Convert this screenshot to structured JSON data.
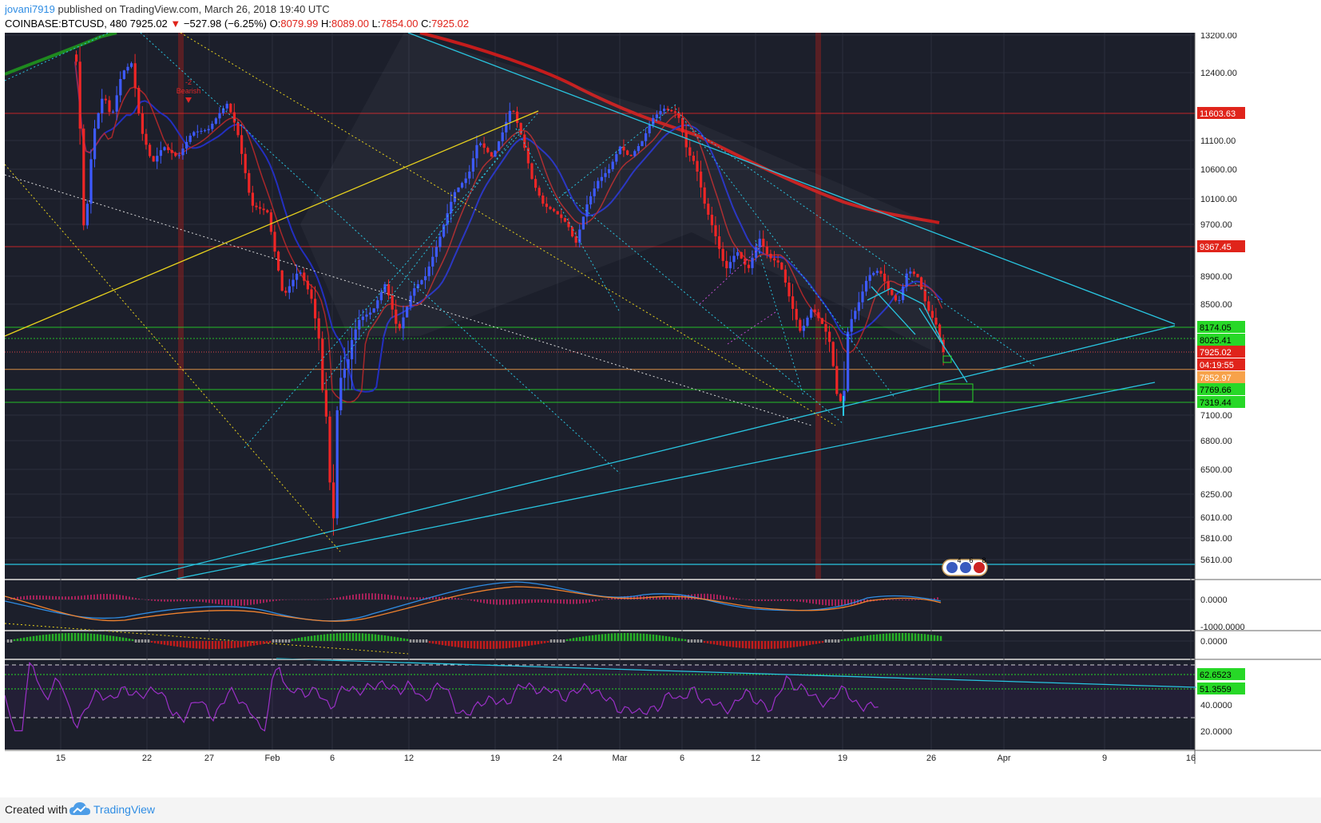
{
  "header": {
    "author": "jovani7919",
    "published_text": " published on TradingView.com, March 26, 2018 19:40 UTC",
    "symbol": "COINBASE:BTCUSD, 480",
    "last": "7925.02",
    "change": "−527.98 (−6.25%)",
    "o_label": "O:",
    "o_val": "8079.99",
    "h_label": "H:",
    "h_val": "8089.00",
    "l_label": "L:",
    "l_val": "7854.00",
    "c_label": "C:",
    "c_val": "7925.02"
  },
  "footer": {
    "created": "Created with",
    "brand": "TradingView"
  },
  "colors": {
    "background": "#1c1f2b",
    "up": "#3d5afe",
    "down": "#ef2626",
    "grid": "#2b2f3d",
    "axis_text": "#d0d3da",
    "cyan": "#29c5e0",
    "yellow": "#e8d21d",
    "green_line": "#27d827",
    "red_line": "#e02727",
    "ma200": "#c41c1c",
    "ma_blue": "#2430c8",
    "rsi": "#9b30c7",
    "macd_blue": "#2f8de4",
    "macd_orange": "#f0822e"
  },
  "badges": {
    "eth_a": "4",
    "eth_b": "6",
    "eth_c": "8",
    "signal": "-2\nBearish"
  },
  "chart_data": [
    {
      "type": "candlestick",
      "pane": "price",
      "symbol": "COINBASE:BTCUSD",
      "interval": "480",
      "y_axis_ticks": [
        13200,
        12400,
        11100,
        10600,
        10100,
        9700,
        8900,
        8500,
        7100,
        6800,
        6500,
        6250,
        6010,
        5810,
        5610
      ],
      "y_axis_labels": [
        "13200.00",
        "12400.00",
        "11100.00",
        "10600.00",
        "10100.00",
        "9700.00",
        "8900.00",
        "8500.00",
        "7100.00",
        "6800.00",
        "6500.00",
        "6250.00",
        "6010.00",
        "5810.00",
        "5610.00"
      ],
      "x_axis_labels": [
        "15",
        "22",
        "27",
        "Feb",
        "6",
        "12",
        "19",
        "24",
        "Mar",
        "6",
        "12",
        "19",
        "26",
        "Apr",
        "9",
        "16"
      ],
      "price_labels": [
        {
          "value": "11603.63",
          "kind": "red"
        },
        {
          "value": "9367.45",
          "kind": "red"
        },
        {
          "value": "8174.05",
          "kind": "green"
        },
        {
          "value": "8025.41",
          "kind": "green"
        },
        {
          "value": "7925.02",
          "kind": "red"
        },
        {
          "value": "04:19:55",
          "kind": "red"
        },
        {
          "value": "7852.97",
          "kind": "orange"
        },
        {
          "value": "7769.66",
          "kind": "green"
        },
        {
          "value": "7319.44",
          "kind": "green"
        }
      ],
      "horizontal_levels": [
        11603.63,
        9367.45,
        8174.05,
        8025.41,
        7925.02,
        7852.97,
        7769.66,
        7319.44
      ],
      "key_prices": [
        {
          "point": "Jan 14 high",
          "value": 13200
        },
        {
          "point": "Jan 17 low",
          "value": 9400
        },
        {
          "point": "Jan 28 high",
          "value": 11800
        },
        {
          "point": "Feb 6 low",
          "value": 6000
        },
        {
          "point": "Feb 20 high",
          "value": 11750
        },
        {
          "point": "Feb 25 low",
          "value": 9400
        },
        {
          "point": "Mar 5 high",
          "value": 11700
        },
        {
          "point": "Mar 18 low",
          "value": 7350
        },
        {
          "point": "Mar 21 high",
          "value": 9050
        },
        {
          "point": "Mar 26 close",
          "value": 7925.02
        }
      ]
    },
    {
      "type": "line",
      "pane": "macd",
      "y_axis_labels": [
        "0.0000",
        "-1000.0000"
      ],
      "series_colors": [
        "#2f8de4",
        "#f0822e"
      ]
    },
    {
      "type": "bar",
      "pane": "momentum",
      "y_axis_labels": [
        "0.0000"
      ]
    },
    {
      "type": "line",
      "pane": "rsi",
      "y_axis_labels": [
        "62.6523",
        "51.3559",
        "40.0000",
        "20.0000"
      ]
    }
  ]
}
